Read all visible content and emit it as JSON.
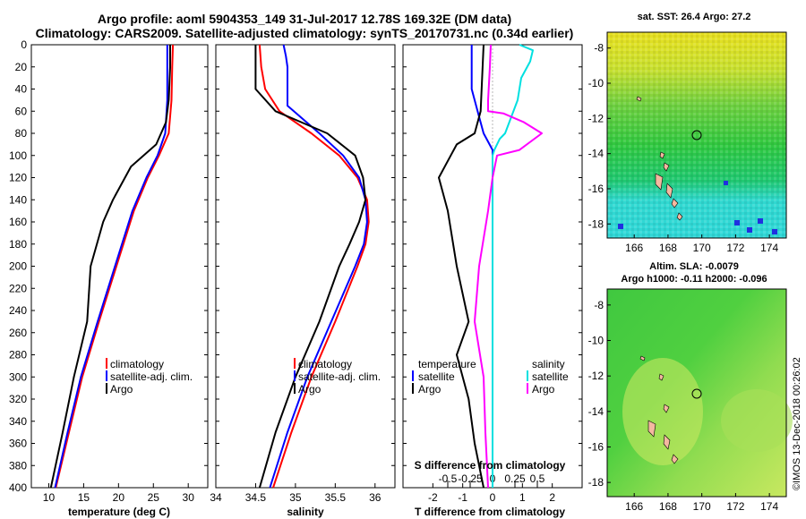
{
  "title": {
    "line1": "Argo profile: aoml 5904353_149 31-Jul-2017 12.78S 169.32E (DM data)",
    "line2": "Climatology: CARS2009. Satellite-adjusted climatology: synTS_20170731.nc (0.34d earlier)"
  },
  "colors": {
    "climatology": "#ff0000",
    "satellite": "#0000ff",
    "argo": "#000000",
    "sat_salinity": "#00e0e0",
    "clim_salinity": "#ff00ff"
  },
  "chart_data": [
    {
      "type": "line",
      "name": "temperature-profile",
      "xlabel": "temperature (deg C)",
      "ylabel": "depth",
      "xlim": [
        7.5,
        32.8
      ],
      "ylim": [
        400,
        0
      ],
      "xticks": [
        "10",
        "15",
        "20",
        "25",
        "30"
      ],
      "yticks": [
        "0",
        "20",
        "40",
        "60",
        "80",
        "100",
        "120",
        "140",
        "160",
        "180",
        "200",
        "220",
        "240",
        "260",
        "280",
        "300",
        "320",
        "340",
        "360",
        "380",
        "400"
      ],
      "legend": [
        "climatology",
        "satellite-adj. clim.",
        "Argo"
      ],
      "series": [
        {
          "name": "climatology",
          "depth": [
            0,
            20,
            50,
            80,
            100,
            120,
            150,
            200,
            250,
            300,
            350,
            400
          ],
          "values": [
            27.8,
            27.7,
            27.6,
            27.2,
            25.8,
            24.2,
            22.2,
            19.7,
            17.2,
            14.8,
            12.9,
            11.0
          ]
        },
        {
          "name": "satellite-adj. clim.",
          "depth": [
            0,
            20,
            50,
            80,
            100,
            120,
            150,
            200,
            250,
            300,
            350,
            400
          ],
          "values": [
            27.0,
            27.0,
            27.0,
            26.7,
            25.6,
            24.0,
            22.0,
            19.5,
            17.0,
            14.6,
            12.7,
            10.9
          ]
        },
        {
          "name": "Argo",
          "depth": [
            0,
            20,
            50,
            70,
            90,
            110,
            140,
            160,
            200,
            250,
            300,
            350,
            400
          ],
          "values": [
            27.4,
            27.4,
            27.2,
            26.8,
            25.4,
            21.8,
            19.2,
            17.8,
            16.0,
            15.5,
            13.6,
            12.0,
            10.3
          ]
        }
      ]
    },
    {
      "type": "line",
      "name": "salinity-profile",
      "xlabel": "salinity",
      "ylabel": "depth",
      "xlim": [
        34.0,
        36.25
      ],
      "ylim": [
        400,
        0
      ],
      "xticks": [
        "34",
        "34.5",
        "35",
        "35.5",
        "36"
      ],
      "legend": [
        "climatology",
        "satellite-adj. clim.",
        "Argo"
      ],
      "series": [
        {
          "name": "climatology",
          "depth": [
            0,
            20,
            40,
            60,
            80,
            100,
            120,
            140,
            160,
            180,
            200,
            250,
            300,
            350,
            400
          ],
          "values": [
            34.55,
            34.57,
            34.62,
            34.8,
            35.2,
            35.55,
            35.78,
            35.9,
            35.92,
            35.88,
            35.78,
            35.5,
            35.2,
            34.95,
            34.72
          ]
        },
        {
          "name": "satellite-adj. clim.",
          "depth": [
            0,
            10,
            20,
            40,
            55,
            80,
            100,
            120,
            140,
            160,
            180,
            200,
            250,
            300,
            350,
            400
          ],
          "values": [
            34.85,
            34.88,
            34.9,
            34.9,
            34.9,
            35.3,
            35.6,
            35.8,
            35.88,
            35.9,
            35.86,
            35.75,
            35.45,
            35.15,
            34.9,
            34.68
          ]
        },
        {
          "name": "Argo",
          "depth": [
            0,
            20,
            40,
            60,
            80,
            100,
            120,
            140,
            160,
            180,
            200,
            250,
            300,
            350,
            400
          ],
          "values": [
            34.5,
            34.5,
            34.5,
            34.75,
            35.4,
            35.75,
            35.85,
            35.88,
            35.8,
            35.68,
            35.55,
            35.3,
            35.0,
            34.75,
            34.55
          ]
        }
      ]
    },
    {
      "type": "line",
      "name": "difference-profile",
      "xlabel": "T difference from climatology",
      "xlabel_top": "S difference from climatology",
      "ylabel": "depth",
      "xlim": [
        -3.0,
        3.0
      ],
      "ylim": [
        400,
        0
      ],
      "xticks": [
        "-2",
        "-1",
        "0",
        "1",
        "2"
      ],
      "xticks_top": [
        "-0.5",
        "-0.25",
        "0",
        "0.25",
        "0.5"
      ],
      "legend_temperature": {
        "header": "temperature",
        "items": [
          "satellite",
          "Argo"
        ]
      },
      "legend_salinity": {
        "header": "salinity",
        "items": [
          "satellite",
          "Argo"
        ]
      },
      "series": [
        {
          "name": "T satellite",
          "depth": [
            0,
            40,
            60,
            80,
            95,
            100,
            200,
            300,
            400
          ],
          "values": [
            -0.7,
            -0.7,
            -0.5,
            -0.3,
            0.0,
            0.0,
            0.0,
            0.0,
            0.0
          ]
        },
        {
          "name": "T Argo",
          "depth": [
            0,
            60,
            80,
            90,
            100,
            120,
            150,
            200,
            250,
            280,
            320,
            360,
            400
          ],
          "values": [
            -0.3,
            -0.4,
            -0.6,
            -1.2,
            -1.4,
            -1.8,
            -1.5,
            -1.2,
            -0.8,
            -1.2,
            -0.8,
            -0.6,
            -0.3
          ]
        },
        {
          "name": "S satellite",
          "depth": [
            0,
            5,
            15,
            30,
            50,
            80,
            85,
            95,
            100,
            110,
            125,
            400
          ],
          "values": [
            0.3,
            0.45,
            0.42,
            0.32,
            0.28,
            0.14,
            0.08,
            0.02,
            0.0,
            0.0,
            0.0,
            0.0
          ]
        },
        {
          "name": "S Argo",
          "depth": [
            0,
            20,
            50,
            60,
            62,
            70,
            80,
            95,
            100,
            120,
            150,
            200,
            250,
            300,
            350,
            400
          ],
          "values": [
            -0.02,
            -0.03,
            -0.05,
            -0.05,
            0.12,
            0.35,
            0.55,
            0.3,
            0.05,
            0.0,
            -0.05,
            -0.15,
            -0.2,
            -0.1,
            -0.08,
            -0.05
          ]
        }
      ]
    }
  ],
  "maps": {
    "sst": {
      "title": "sat. SST: 26.4 Argo: 27.2",
      "x_ticks": [
        "166",
        "168",
        "170",
        "172",
        "174"
      ],
      "y_ticks": [
        "-8",
        "-10",
        "-12",
        "-14",
        "-16",
        "-18"
      ]
    },
    "sla": {
      "title_line1": "Altim. SLA: -0.0079",
      "title_line2": "Argo h1000: -0.11 h2000: -0.096",
      "x_ticks": [
        "166",
        "168",
        "170",
        "172",
        "174"
      ],
      "y_ticks": [
        "-8",
        "-10",
        "-12",
        "-14",
        "-16",
        "-18"
      ]
    }
  },
  "stamp": "©IMOS 13-Dec-2018 00:26:02"
}
